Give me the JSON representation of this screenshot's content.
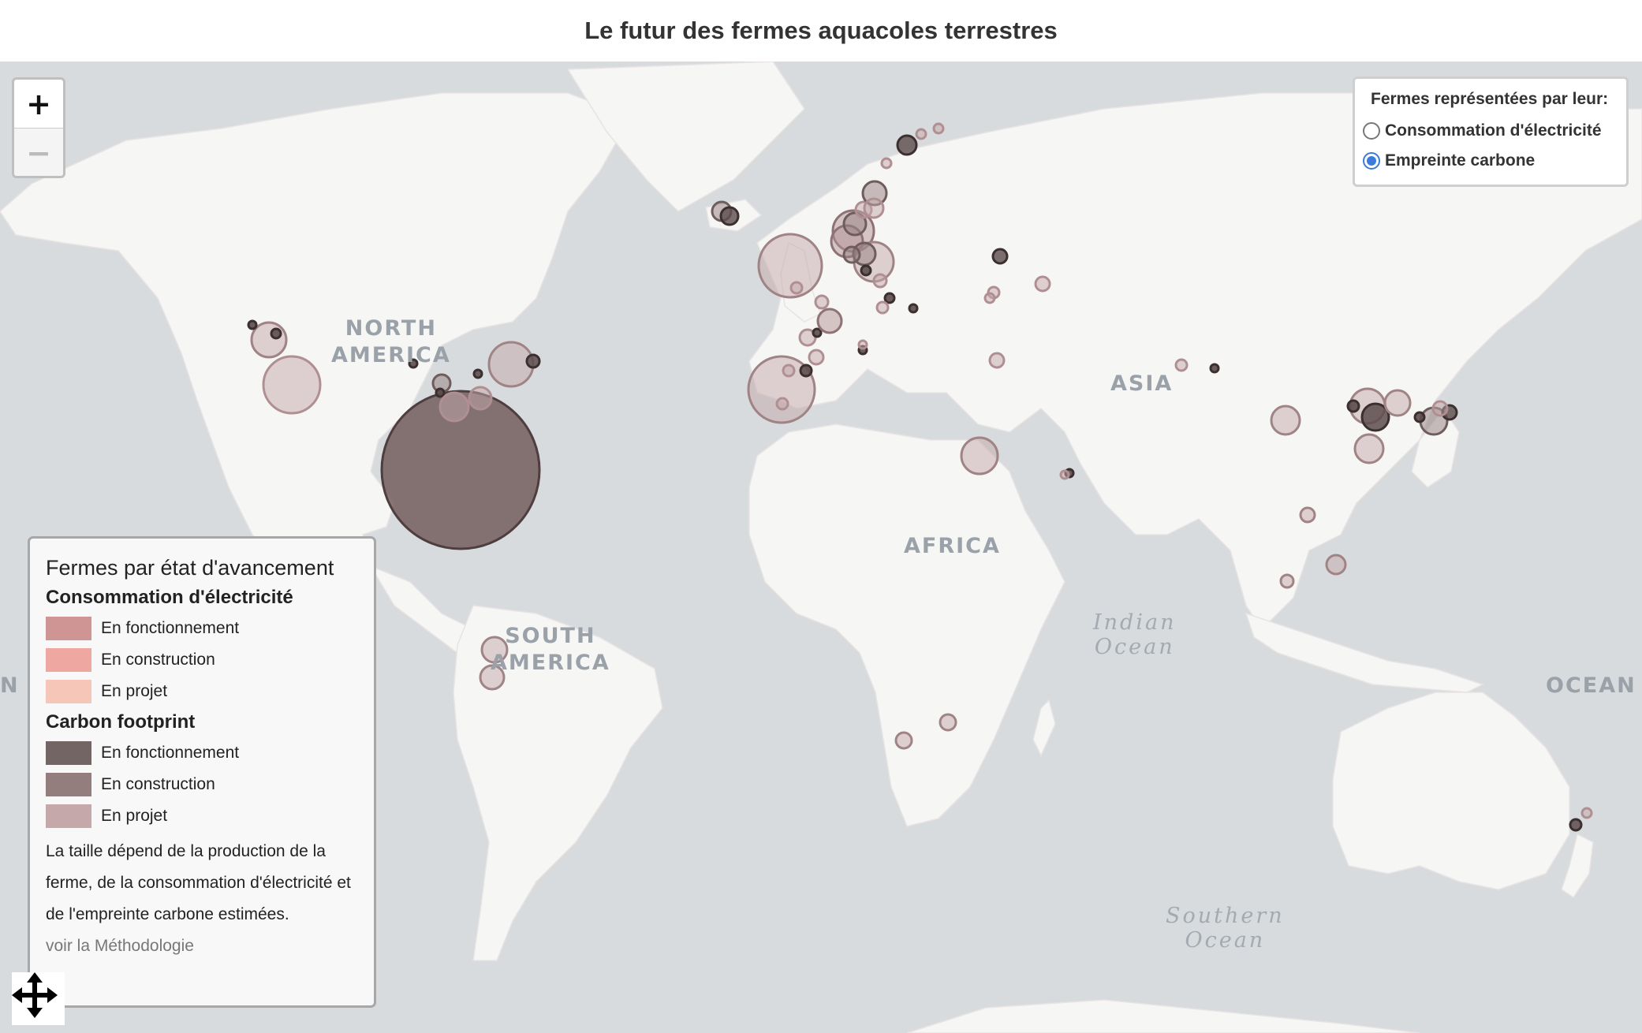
{
  "title": "Le futur des fermes aquacoles terrestres",
  "map": {
    "zoom_in_label": "+",
    "zoom_out_label": "−",
    "region_labels": {
      "north_america": "NORTH\nAMERICA",
      "south_america": "SOUTH\nAMERICA",
      "africa": "AFRICA",
      "asia": "ASIA",
      "ocean_left": "N",
      "ocean_right": "OCEAN"
    },
    "ocean_labels": {
      "indian": "Indian\nOcean",
      "southern": "Southern\nOcean"
    },
    "colors": {
      "water": "#d7dbdd",
      "land": "#f6f6f5",
      "border": "#eddcdd"
    }
  },
  "toggle": {
    "title": "Fermes représentées par leur:",
    "options": [
      {
        "label": "Consommation d'électricité",
        "selected": false
      },
      {
        "label": "Empreinte carbone",
        "selected": true
      }
    ]
  },
  "legend": {
    "title": "Fermes par état d'avancement",
    "groups": [
      {
        "heading": "Consommation d'électricité",
        "items": [
          {
            "label": "En fonctionnement",
            "color": "#cf9595"
          },
          {
            "label": "En construction",
            "color": "#eea8a1"
          },
          {
            "label": "En projet",
            "color": "#f6c7b9"
          }
        ]
      },
      {
        "heading": "Carbon footprint",
        "items": [
          {
            "label": "En fonctionnement",
            "color": "#746565"
          },
          {
            "label": "En construction",
            "color": "#937d7d"
          },
          {
            "label": "En projet",
            "color": "#c4a8aa"
          }
        ]
      }
    ],
    "note": "La taille dépend de la production de la ferme, de la consommation d'électricité et de l'empreinte carbone estimées.",
    "link": "voir la Méthodologie"
  },
  "pan_icon": "move-arrows-icon"
}
